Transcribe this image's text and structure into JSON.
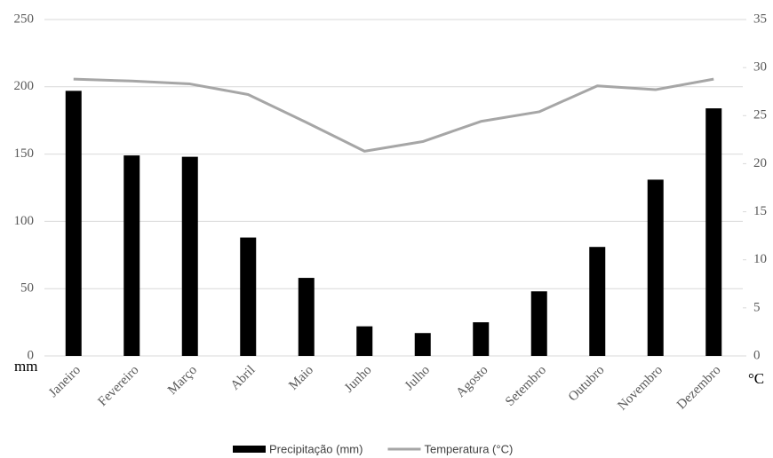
{
  "chart_data": {
    "type": "bar-line",
    "y_label": "mm",
    "y2_label": "°C",
    "categories": [
      "Janeiro",
      "Fevereiro",
      "Março",
      "Abril",
      "Maio",
      "Junho",
      "Julho",
      "Agosto",
      "Setembro",
      "Outubro",
      "Novembro",
      "Dezembro"
    ],
    "series": [
      {
        "name": "Precipitação (mm)",
        "type": "bar",
        "color": "#000000",
        "values": [
          197,
          149,
          148,
          88,
          58,
          22,
          17,
          25,
          48,
          81,
          131,
          184
        ]
      },
      {
        "name": "Temperatura (°C)",
        "type": "line",
        "axis": "y2",
        "color": "#a6a6a6",
        "values": [
          28.8,
          28.6,
          28.3,
          27.2,
          24.3,
          21.3,
          22.3,
          24.4,
          25.4,
          28.1,
          27.7,
          28.8
        ]
      }
    ],
    "ylim": [
      0,
      250
    ],
    "yticks": [
      0,
      50,
      100,
      150,
      200,
      250
    ],
    "y2lim": [
      0,
      35
    ],
    "y2ticks": [
      0,
      5,
      10,
      15,
      20,
      25,
      30,
      35
    ],
    "grid": true,
    "legend": "bottom"
  }
}
